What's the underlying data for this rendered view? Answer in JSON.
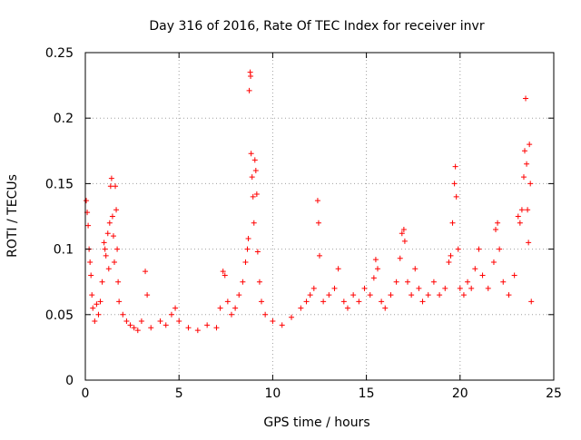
{
  "chart_data": {
    "type": "scatter",
    "title": "Day 316 of 2016, Rate Of TEC Index for receiver invr",
    "xlabel": "GPS time / hours",
    "ylabel": "ROTI / TECUs",
    "xlim": [
      0,
      25
    ],
    "ylim": [
      0,
      0.25
    ],
    "xticks": [
      0,
      5,
      10,
      15,
      20,
      25
    ],
    "xtick_labels": [
      "0",
      "5",
      "10",
      "15",
      "20",
      "25"
    ],
    "yticks": [
      0,
      0.05,
      0.1,
      0.15,
      0.2,
      0.25
    ],
    "ytick_labels": [
      "0",
      "0.05",
      "0.1",
      "0.15",
      "0.2",
      "0.25"
    ],
    "grid": true,
    "marker": "+",
    "series": [
      {
        "name": "ROTI",
        "color": "#ff0000",
        "points": [
          [
            0.05,
            0.137
          ],
          [
            0.1,
            0.128
          ],
          [
            0.15,
            0.118
          ],
          [
            0.2,
            0.1
          ],
          [
            0.25,
            0.09
          ],
          [
            0.3,
            0.08
          ],
          [
            0.35,
            0.065
          ],
          [
            0.4,
            0.055
          ],
          [
            0.5,
            0.045
          ],
          [
            0.6,
            0.058
          ],
          [
            0.7,
            0.05
          ],
          [
            0.8,
            0.06
          ],
          [
            0.9,
            0.075
          ],
          [
            1.0,
            0.105
          ],
          [
            1.05,
            0.1
          ],
          [
            1.1,
            0.095
          ],
          [
            1.2,
            0.112
          ],
          [
            1.25,
            0.085
          ],
          [
            1.3,
            0.12
          ],
          [
            1.35,
            0.148
          ],
          [
            1.4,
            0.154
          ],
          [
            1.45,
            0.125
          ],
          [
            1.5,
            0.11
          ],
          [
            1.55,
            0.09
          ],
          [
            1.6,
            0.148
          ],
          [
            1.65,
            0.13
          ],
          [
            1.7,
            0.1
          ],
          [
            1.75,
            0.075
          ],
          [
            1.8,
            0.06
          ],
          [
            2.0,
            0.05
          ],
          [
            2.2,
            0.045
          ],
          [
            2.4,
            0.042
          ],
          [
            2.6,
            0.04
          ],
          [
            2.8,
            0.038
          ],
          [
            3.0,
            0.045
          ],
          [
            3.2,
            0.083
          ],
          [
            3.3,
            0.065
          ],
          [
            3.5,
            0.04
          ],
          [
            4.0,
            0.045
          ],
          [
            4.3,
            0.042
          ],
          [
            4.6,
            0.05
          ],
          [
            4.8,
            0.055
          ],
          [
            5.0,
            0.045
          ],
          [
            5.5,
            0.04
          ],
          [
            6.0,
            0.038
          ],
          [
            6.5,
            0.042
          ],
          [
            7.0,
            0.04
          ],
          [
            7.2,
            0.055
          ],
          [
            7.35,
            0.083
          ],
          [
            7.45,
            0.08
          ],
          [
            7.6,
            0.06
          ],
          [
            7.8,
            0.05
          ],
          [
            8.0,
            0.055
          ],
          [
            8.2,
            0.065
          ],
          [
            8.4,
            0.075
          ],
          [
            8.55,
            0.09
          ],
          [
            8.65,
            0.1
          ],
          [
            8.7,
            0.108
          ],
          [
            8.75,
            0.221
          ],
          [
            8.8,
            0.235
          ],
          [
            8.82,
            0.232
          ],
          [
            8.85,
            0.173
          ],
          [
            8.9,
            0.155
          ],
          [
            8.95,
            0.14
          ],
          [
            9.0,
            0.12
          ],
          [
            9.05,
            0.168
          ],
          [
            9.1,
            0.16
          ],
          [
            9.15,
            0.142
          ],
          [
            9.2,
            0.098
          ],
          [
            9.3,
            0.075
          ],
          [
            9.4,
            0.06
          ],
          [
            9.6,
            0.05
          ],
          [
            10.0,
            0.045
          ],
          [
            10.5,
            0.042
          ],
          [
            11.0,
            0.048
          ],
          [
            11.5,
            0.055
          ],
          [
            11.8,
            0.06
          ],
          [
            12.0,
            0.065
          ],
          [
            12.2,
            0.07
          ],
          [
            12.4,
            0.137
          ],
          [
            12.45,
            0.12
          ],
          [
            12.5,
            0.095
          ],
          [
            12.7,
            0.06
          ],
          [
            13.0,
            0.065
          ],
          [
            13.3,
            0.07
          ],
          [
            13.5,
            0.085
          ],
          [
            13.8,
            0.06
          ],
          [
            14.0,
            0.055
          ],
          [
            14.3,
            0.065
          ],
          [
            14.6,
            0.06
          ],
          [
            14.9,
            0.07
          ],
          [
            15.2,
            0.065
          ],
          [
            15.4,
            0.078
          ],
          [
            15.5,
            0.092
          ],
          [
            15.6,
            0.085
          ],
          [
            15.8,
            0.06
          ],
          [
            16.0,
            0.055
          ],
          [
            16.3,
            0.065
          ],
          [
            16.6,
            0.075
          ],
          [
            16.8,
            0.093
          ],
          [
            16.9,
            0.112
          ],
          [
            17.0,
            0.115
          ],
          [
            17.05,
            0.106
          ],
          [
            17.2,
            0.075
          ],
          [
            17.4,
            0.065
          ],
          [
            17.6,
            0.085
          ],
          [
            17.8,
            0.07
          ],
          [
            18.0,
            0.06
          ],
          [
            18.3,
            0.065
          ],
          [
            18.6,
            0.075
          ],
          [
            18.9,
            0.065
          ],
          [
            19.2,
            0.07
          ],
          [
            19.4,
            0.09
          ],
          [
            19.5,
            0.095
          ],
          [
            19.6,
            0.12
          ],
          [
            19.7,
            0.15
          ],
          [
            19.75,
            0.163
          ],
          [
            19.8,
            0.14
          ],
          [
            19.9,
            0.1
          ],
          [
            20.0,
            0.07
          ],
          [
            20.2,
            0.065
          ],
          [
            20.4,
            0.075
          ],
          [
            20.6,
            0.07
          ],
          [
            20.8,
            0.085
          ],
          [
            21.0,
            0.1
          ],
          [
            21.2,
            0.08
          ],
          [
            21.5,
            0.07
          ],
          [
            21.8,
            0.09
          ],
          [
            21.9,
            0.115
          ],
          [
            22.0,
            0.12
          ],
          [
            22.1,
            0.1
          ],
          [
            22.3,
            0.075
          ],
          [
            22.6,
            0.065
          ],
          [
            22.9,
            0.08
          ],
          [
            23.1,
            0.125
          ],
          [
            23.2,
            0.12
          ],
          [
            23.3,
            0.13
          ],
          [
            23.4,
            0.155
          ],
          [
            23.45,
            0.175
          ],
          [
            23.5,
            0.215
          ],
          [
            23.55,
            0.165
          ],
          [
            23.6,
            0.13
          ],
          [
            23.65,
            0.105
          ],
          [
            23.7,
            0.18
          ],
          [
            23.75,
            0.15
          ],
          [
            23.8,
            0.06
          ]
        ]
      }
    ]
  }
}
